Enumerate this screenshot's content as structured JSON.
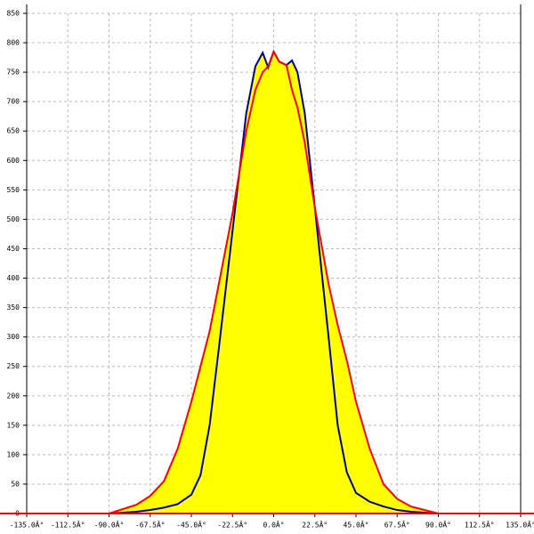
{
  "chart_data": {
    "type": "line",
    "fill_color": "#ffff00",
    "axis_color": "#ff0000",
    "x": [
      -90,
      -75,
      -67.5,
      -60,
      -52.5,
      -45,
      -40,
      -35,
      -30,
      -22.5,
      -15,
      -10,
      -6,
      -3,
      0,
      3,
      7,
      10,
      13,
      17,
      22.5,
      30,
      35,
      40,
      45,
      52.5,
      60,
      67.5,
      75,
      90
    ],
    "series": [
      {
        "color": "#000099",
        "values": [
          0,
          3,
          6,
          10,
          16,
          32,
          65,
          150,
          280,
          480,
          680,
          760,
          783,
          758,
          785,
          768,
          762,
          770,
          750,
          680,
          520,
          300,
          150,
          70,
          35,
          20,
          12,
          6,
          3,
          0
        ]
      },
      {
        "color": "#ff0000",
        "values": [
          0,
          15,
          30,
          55,
          110,
          190,
          250,
          310,
          390,
          510,
          650,
          720,
          750,
          760,
          785,
          768,
          762,
          720,
          690,
          630,
          520,
          390,
          320,
          260,
          190,
          110,
          50,
          25,
          12,
          0
        ]
      }
    ],
    "xlim": [
      -135,
      135
    ],
    "xticks": [
      {
        "value": -135,
        "label": "-135.0Â°"
      },
      {
        "value": -112.5,
        "label": "-112.5Â°"
      },
      {
        "value": -90,
        "label": "-90.0Â°"
      },
      {
        "value": -67.5,
        "label": "-67.5Â°"
      },
      {
        "value": -45,
        "label": "-45.0Â°"
      },
      {
        "value": -22.5,
        "label": "-22.5Â°"
      },
      {
        "value": 0,
        "label": "0.0Â°"
      },
      {
        "value": 22.5,
        "label": "22.5Â°"
      },
      {
        "value": 45,
        "label": "45.0Â°"
      },
      {
        "value": 67.5,
        "label": "67.5Â°"
      },
      {
        "value": 90,
        "label": "90.0Â°"
      },
      {
        "value": 112.5,
        "label": "112.5Â°"
      },
      {
        "value": 135,
        "label": "135.0Â°"
      }
    ],
    "ylim": [
      0,
      850
    ],
    "yticks": [
      0,
      50,
      100,
      150,
      200,
      250,
      300,
      350,
      400,
      450,
      500,
      550,
      600,
      650,
      700,
      750,
      800,
      850
    ],
    "grid": true
  }
}
